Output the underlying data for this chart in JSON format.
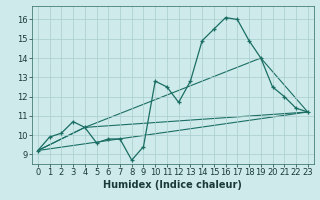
{
  "title": "",
  "xlabel": "Humidex (Indice chaleur)",
  "ylabel": "",
  "bg_color": "#ceeaea",
  "grid_color": "#aacccc",
  "line_color": "#1a6e64",
  "xlim": [
    -0.5,
    23.5
  ],
  "ylim": [
    8.5,
    16.7
  ],
  "xticks": [
    0,
    1,
    2,
    3,
    4,
    5,
    6,
    7,
    8,
    9,
    10,
    11,
    12,
    13,
    14,
    15,
    16,
    17,
    18,
    19,
    20,
    21,
    22,
    23
  ],
  "yticks": [
    9,
    10,
    11,
    12,
    13,
    14,
    15,
    16
  ],
  "line1_x": [
    0,
    1,
    2,
    3,
    4,
    5,
    6,
    7,
    8,
    9,
    10,
    11,
    12,
    13,
    14,
    15,
    16,
    17,
    18,
    19,
    20,
    21,
    22,
    23
  ],
  "line1_y": [
    9.2,
    9.9,
    10.1,
    10.7,
    10.4,
    9.6,
    9.8,
    9.8,
    8.7,
    9.4,
    12.8,
    12.5,
    11.7,
    12.8,
    14.9,
    15.5,
    16.1,
    16.0,
    14.9,
    14.0,
    12.5,
    12.0,
    11.4,
    11.2
  ],
  "line2_x": [
    0,
    23
  ],
  "line2_y": [
    9.2,
    11.2
  ],
  "line3_x": [
    0,
    4,
    23
  ],
  "line3_y": [
    9.2,
    10.4,
    11.2
  ],
  "line4_x": [
    0,
    4,
    19,
    23
  ],
  "line4_y": [
    9.2,
    10.4,
    14.0,
    11.2
  ],
  "xlabel_fontsize": 7,
  "tick_fontsize": 6
}
